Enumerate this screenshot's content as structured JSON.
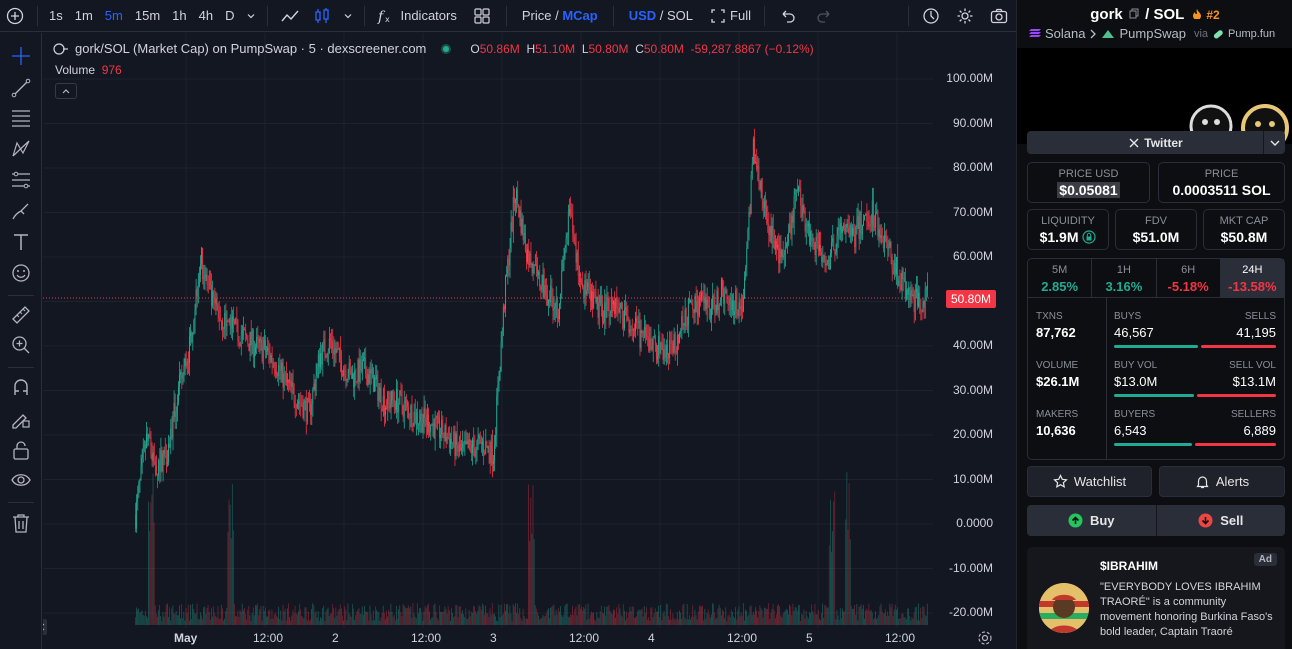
{
  "toolbar": {
    "intervals": [
      "1s",
      "1m",
      "5m",
      "15m",
      "1h",
      "4h",
      "D"
    ],
    "active_interval": "5m",
    "indicators_label": "Indicators",
    "price_label": "Price",
    "mcap_label": "MCap",
    "usd_label": "USD",
    "sol_label": "SOL",
    "full_label": "Full"
  },
  "chart": {
    "symbol_title": "gork/SOL (Market Cap) on PumpSwap · 5 · dexscreener.com",
    "ohlc": {
      "o_label": "O",
      "o": "50.86M",
      "h_label": "H",
      "h": "51.10M",
      "l_label": "L",
      "l": "50.80M",
      "c_label": "C",
      "c": "50.80M",
      "change": "-59,287.8867 (−0.12%)"
    },
    "volume_label": "Volume",
    "volume_value": "976",
    "last_price_tag": "50.80M",
    "colors": {
      "up": "#22ab94",
      "down": "#f23645",
      "accent": "#2962ff"
    }
  },
  "chart_data": {
    "type": "candlestick",
    "title": "gork/SOL (Market Cap) on PumpSwap · 5 · dexscreener.com",
    "y_ticks": [
      "100.00M",
      "90.00M",
      "80.00M",
      "70.00M",
      "60.00M",
      "50.00M",
      "40.00M",
      "30.00M",
      "20.00M",
      "10.00M",
      "0.0000",
      "-10.00M",
      "-20.00M"
    ],
    "x_ticks": [
      "May",
      "12:00",
      "2",
      "12:00",
      "3",
      "12:00",
      "4",
      "12:00",
      "5",
      "12:00"
    ],
    "ylim": [
      -20000000,
      100000000
    ],
    "last_price": 50800000,
    "series": [
      {
        "name": "gork/SOL",
        "values": [
          2,
          19,
          13,
          17,
          30,
          40,
          60,
          50,
          46,
          44,
          42,
          40,
          39,
          36,
          31,
          28,
          25,
          38,
          41,
          36,
          33,
          35,
          32,
          27,
          28,
          26,
          24,
          23,
          21,
          19,
          16,
          17,
          18,
          16,
          50,
          75,
          62,
          55,
          52,
          49,
          70,
          55,
          50,
          48,
          50,
          47,
          44,
          41,
          40,
          38,
          42,
          48,
          50,
          48,
          52,
          50,
          49,
          85,
          70,
          62,
          60,
          76,
          66,
          62,
          60,
          66,
          64,
          68,
          70,
          64,
          58,
          52,
          50,
          51
        ]
      }
    ],
    "grid": true
  },
  "panel": {
    "pair": {
      "base": "gork",
      "sep": "/",
      "quote": "SOL",
      "rank": "#2"
    },
    "breadcrumb": {
      "chain": "Solana",
      "dex": "PumpSwap",
      "via": "via",
      "launchpad": "Pump.fun"
    },
    "twitter_label": "Twitter",
    "price_usd_label": "PRICE USD",
    "price_usd": "$0.05081",
    "price_label": "PRICE",
    "price_sol": "0.0003511 SOL",
    "liquidity_label": "LIQUIDITY",
    "liquidity": "$1.9M",
    "fdv_label": "FDV",
    "fdv": "$51.0M",
    "mktcap_label": "MKT CAP",
    "mktcap": "$50.8M",
    "timeframes": [
      {
        "label": "5M",
        "value": "2.85%",
        "sign": "up"
      },
      {
        "label": "1H",
        "value": "3.16%",
        "sign": "up"
      },
      {
        "label": "6H",
        "value": "-5.18%",
        "sign": "down"
      },
      {
        "label": "24H",
        "value": "-13.58%",
        "sign": "down"
      }
    ],
    "stats": [
      {
        "left_label": "TXNS",
        "left_value": "87,762",
        "l_label": "BUYS",
        "l_value": "46,567",
        "r_label": "SELLS",
        "r_value": "41,195",
        "buy_fraction": 0.53
      },
      {
        "left_label": "VOLUME",
        "left_value": "$26.1M",
        "l_label": "BUY VOL",
        "l_value": "$13.0M",
        "r_label": "SELL VOL",
        "r_value": "$13.1M",
        "buy_fraction": 0.5
      },
      {
        "left_label": "MAKERS",
        "left_value": "10,636",
        "l_label": "BUYERS",
        "l_value": "6,543",
        "r_label": "SELLERS",
        "r_value": "6,889",
        "buy_fraction": 0.49
      }
    ],
    "watchlist_label": "Watchlist",
    "alerts_label": "Alerts",
    "buy_label": "Buy",
    "sell_label": "Sell",
    "ad": {
      "tag": "Ad",
      "name": "$IBRAHIM",
      "description": "\"EVERYBODY LOVES IBRAHIM TRAORÉ\" is a community movement honoring Burkina Faso's bold leader, Captain Traoré"
    }
  }
}
